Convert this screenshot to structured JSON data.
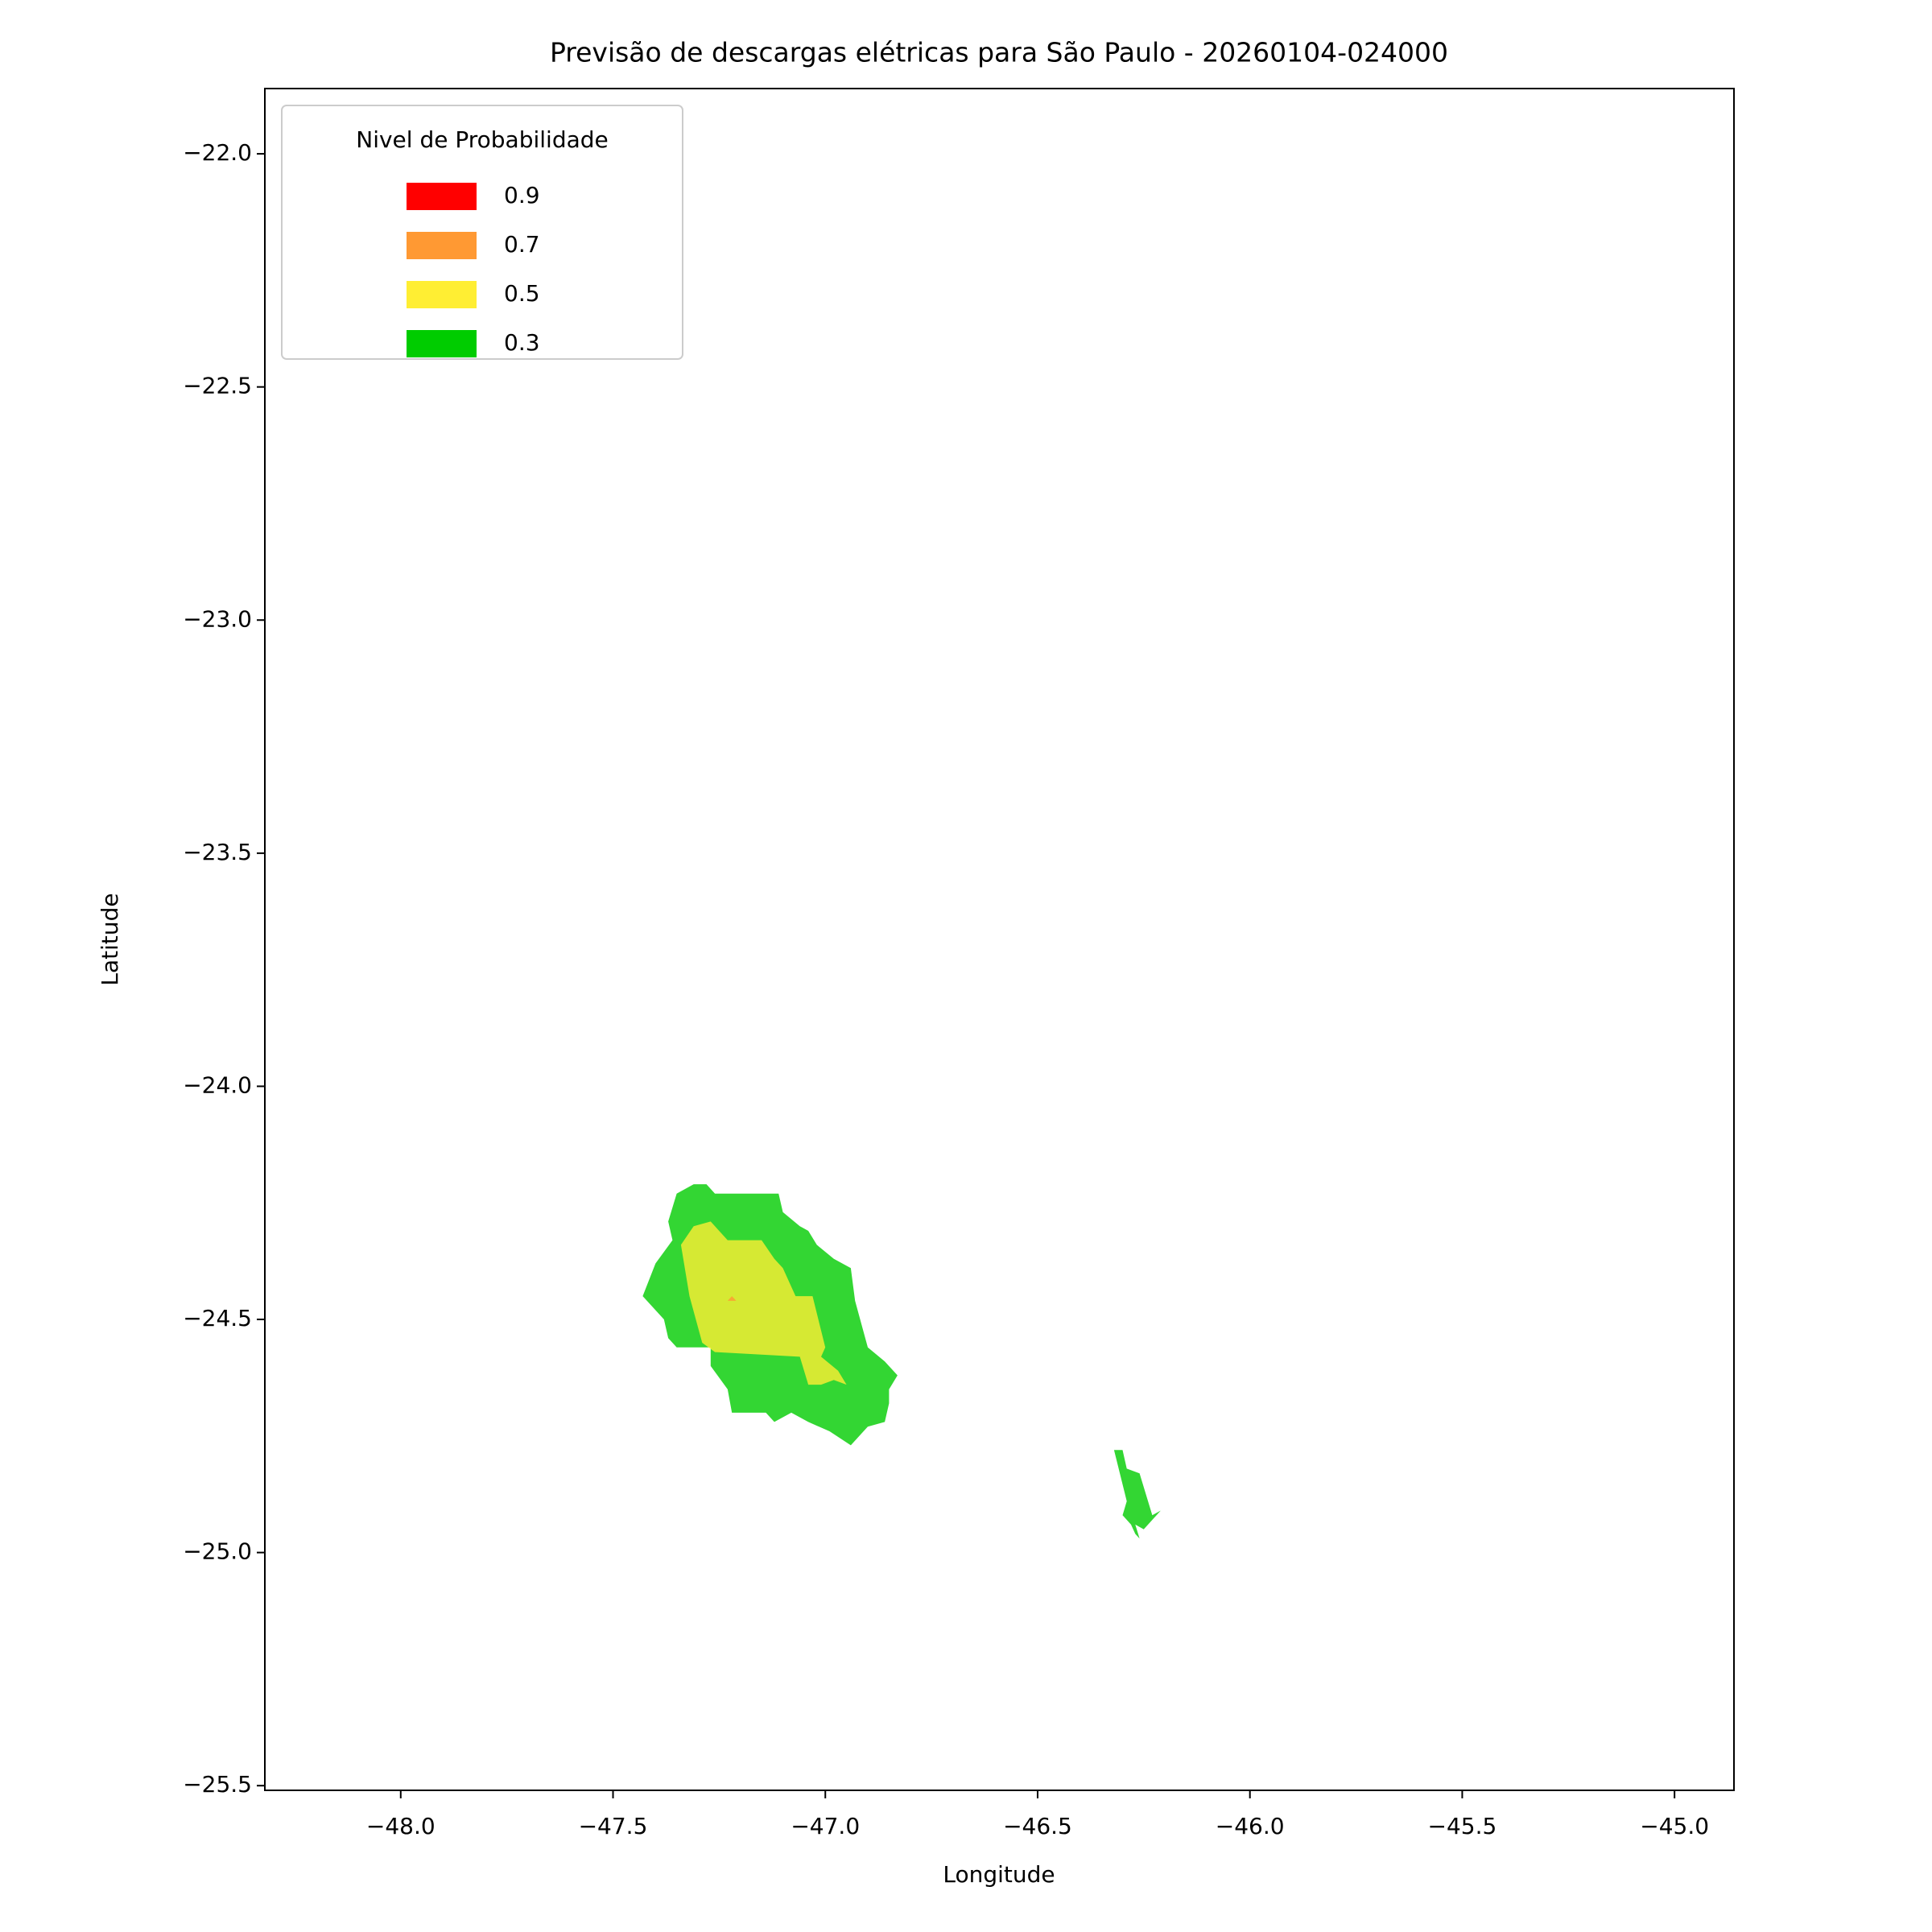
{
  "chart_data": {
    "type": "contour",
    "title": "Previsão de descargas elétricas para São Paulo - 20260104-024000",
    "x_label": "Longitude",
    "y_label": "Latitude",
    "xlim": [
      -48.32,
      -44.86
    ],
    "ylim": [
      -25.51,
      -21.86
    ],
    "xticks": [
      {
        "value": -48.0,
        "label": "−48.0"
      },
      {
        "value": -47.5,
        "label": "−47.5"
      },
      {
        "value": -47.0,
        "label": "−47.0"
      },
      {
        "value": -46.5,
        "label": "−46.5"
      },
      {
        "value": -46.0,
        "label": "−46.0"
      },
      {
        "value": -45.5,
        "label": "−45.5"
      },
      {
        "value": -45.0,
        "label": "−45.0"
      }
    ],
    "yticks": [
      {
        "value": -22.0,
        "label": "−22.0"
      },
      {
        "value": -22.5,
        "label": "−22.5"
      },
      {
        "value": -23.0,
        "label": "−23.0"
      },
      {
        "value": -23.5,
        "label": "−23.5"
      },
      {
        "value": -24.0,
        "label": "−24.0"
      },
      {
        "value": -24.5,
        "label": "−24.5"
      },
      {
        "value": -25.0,
        "label": "−25.0"
      },
      {
        "value": -25.5,
        "label": "−25.5"
      }
    ],
    "legend_title": "Nivel de Probabilidade",
    "legend_position": "upper left",
    "series": [
      {
        "name": "0.9",
        "color": "#ff0000"
      },
      {
        "name": "0.7",
        "color": "#ff9933",
        "polygons": [
          {
            "x": [
              -47.23,
              -47.22,
              -47.21
            ],
            "y": [
              -24.46,
              -24.45,
              -24.46
            ]
          }
        ]
      },
      {
        "name": "0.5",
        "color": "#ffee33",
        "polygons": [
          {
            "x": [
              -47.34,
              -47.31,
              -47.27,
              -47.23,
              -47.15,
              -47.12,
              -47.1,
              -47.07,
              -47.03,
              -47.0,
              -47.01,
              -46.97,
              -46.95,
              -46.98,
              -47.01,
              -47.04,
              -47.06,
              -47.26,
              -47.29,
              -47.32
            ],
            "y": [
              -24.34,
              -24.3,
              -24.29,
              -24.33,
              -24.33,
              -24.37,
              -24.39,
              -24.45,
              -24.45,
              -24.56,
              -24.58,
              -24.61,
              -24.64,
              -24.63,
              -24.64,
              -24.64,
              -24.58,
              -24.57,
              -24.55,
              -24.45
            ]
          }
        ]
      },
      {
        "name": "0.3",
        "color": "#00cc00",
        "polygons": [
          {
            "x": [
              -47.43,
              -47.4,
              -47.36,
              -47.37,
              -47.35,
              -47.31,
              -47.28,
              -47.26,
              -47.11,
              -47.1,
              -47.06,
              -47.04,
              -47.02,
              -46.98,
              -46.94,
              -46.93,
              -46.9,
              -46.86,
              -46.83,
              -46.85,
              -46.85,
              -46.86,
              -46.9,
              -46.94,
              -46.99,
              -47.04,
              -47.08,
              -47.12,
              -47.14,
              -47.22,
              -47.23,
              -47.27,
              -47.27,
              -47.35,
              -47.37,
              -47.38
            ],
            "y": [
              -24.45,
              -24.38,
              -24.33,
              -24.29,
              -24.23,
              -24.21,
              -24.21,
              -24.23,
              -24.23,
              -24.27,
              -24.3,
              -24.31,
              -24.34,
              -24.37,
              -24.39,
              -24.46,
              -24.56,
              -24.59,
              -24.62,
              -24.65,
              -24.68,
              -24.72,
              -24.73,
              -24.77,
              -24.74,
              -24.72,
              -24.7,
              -24.72,
              -24.7,
              -24.7,
              -24.65,
              -24.6,
              -24.56,
              -24.56,
              -24.54,
              -24.5
            ]
          },
          {
            "x": [
              -46.32,
              -46.3,
              -46.29,
              -46.26,
              -46.23,
              -46.21,
              -46.25,
              -46.27,
              -46.26,
              -46.27,
              -46.28,
              -46.3,
              -46.29
            ],
            "y": [
              -24.78,
              -24.78,
              -24.82,
              -24.83,
              -24.92,
              -24.91,
              -24.95,
              -24.94,
              -24.97,
              -24.96,
              -24.94,
              -24.92,
              -24.89
            ]
          }
        ]
      }
    ]
  }
}
